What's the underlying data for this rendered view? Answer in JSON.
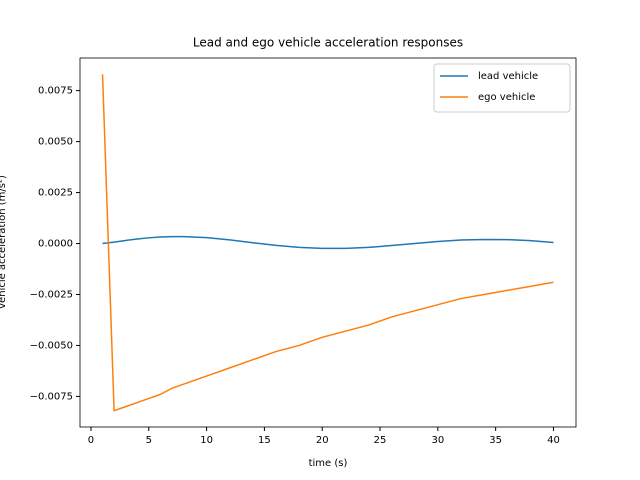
{
  "chart_data": {
    "type": "line",
    "title": "Lead and ego vehicle acceleration responses",
    "xlabel": "time (s)",
    "ylabel": "vehicle acceleration (m/s²)",
    "x": [
      1,
      2,
      3,
      4,
      5,
      6,
      7,
      8,
      10,
      12,
      14,
      16,
      18,
      20,
      22,
      24,
      26,
      28,
      30,
      32,
      34,
      36,
      38,
      40
    ],
    "series": [
      {
        "name": "lead vehicle",
        "color": "#1f77b4",
        "values": [
          0,
          7e-05,
          0.00015,
          0.00022,
          0.00028,
          0.00032,
          0.00034,
          0.00034,
          0.00029,
          0.00018,
          4e-05,
          -9e-05,
          -0.00019,
          -0.00024,
          -0.00024,
          -0.00019,
          -0.0001,
          0,
          0.0001,
          0.00017,
          0.0002,
          0.00019,
          0.00014,
          5e-05
        ]
      },
      {
        "name": "ego vehicle",
        "color": "#ff7f0e",
        "values": [
          0.0083,
          -0.0082,
          -0.008,
          -0.0078,
          -0.0076,
          -0.0074,
          -0.0071,
          -0.0069,
          -0.0065,
          -0.0061,
          -0.0057,
          -0.0053,
          -0.005,
          -0.0046,
          -0.0043,
          -0.004,
          -0.0036,
          -0.0033,
          -0.003,
          -0.0027,
          -0.0025,
          -0.0023,
          -0.0021,
          -0.0019
        ]
      }
    ],
    "xlim": [
      -0.95,
      41.95
    ],
    "xticks": [
      0,
      5,
      10,
      15,
      20,
      25,
      30,
      35,
      40
    ],
    "ylim": [
      -0.009,
      0.0091
    ],
    "yticks": [
      {
        "value": -0.0075,
        "label": "−0.0075"
      },
      {
        "value": -0.005,
        "label": "−0.0050"
      },
      {
        "value": -0.0025,
        "label": "−0.0025"
      },
      {
        "value": 0,
        "label": "0.0000"
      },
      {
        "value": 0.0025,
        "label": "0.0025"
      },
      {
        "value": 0.005,
        "label": "0.0050"
      },
      {
        "value": 0.0075,
        "label": "0.0075"
      }
    ],
    "legend": "upper right"
  }
}
